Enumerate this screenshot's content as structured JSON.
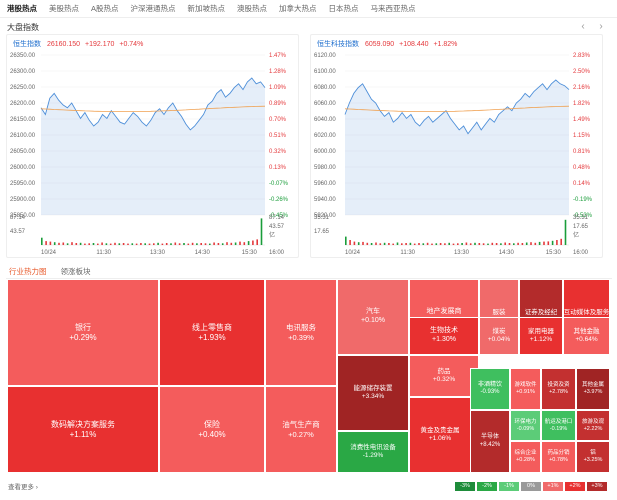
{
  "nav_tabs": [
    "港股热点",
    "美股热点",
    "A股热点",
    "沪深港通热点",
    "新加坡热点",
    "澳股热点",
    "加拿大热点",
    "日本热点",
    "马来西亚热点"
  ],
  "section_title": "大盘指数",
  "arrows": {
    "prev": "‹",
    "next": "›"
  },
  "charts": [
    {
      "name": "恒生指数",
      "price": "26160.150",
      "change": "+192.170",
      "pct": "+0.74%",
      "y_left": [
        "26350.00",
        "26300.00",
        "26250.00",
        "26200.00",
        "26150.00",
        "26100.00",
        "26050.00",
        "26000.00",
        "25950.00",
        "25900.00",
        "25850.00"
      ],
      "y_right": [
        "1.47%",
        "1.28%",
        "1.09%",
        "0.89%",
        "0.70%",
        "0.51%",
        "0.32%",
        "0.13%",
        "-0.07%",
        "-0.26%",
        "-0.45%"
      ],
      "vol_left": [
        "87.14",
        "43.57"
      ],
      "vol_right": [
        "87.14",
        "43.57",
        "亿"
      ],
      "x_ticks": [
        "10/24",
        "11:30",
        "13:30",
        "14:30",
        "15:30",
        "16:00"
      ]
    },
    {
      "name": "恒生科技指数",
      "price": "6059.090",
      "change": "+108.440",
      "pct": "+1.82%",
      "y_left": [
        "6120.00",
        "6100.00",
        "6080.00",
        "6060.00",
        "6040.00",
        "6020.00",
        "6000.00",
        "5980.00",
        "5960.00",
        "5940.00",
        "5920.00"
      ],
      "y_right": [
        "2.83%",
        "2.50%",
        "2.16%",
        "1.82%",
        "1.49%",
        "1.15%",
        "0.81%",
        "0.48%",
        "0.14%",
        "-0.19%",
        "-0.53%"
      ],
      "vol_left": [
        "35.31",
        "17.65"
      ],
      "vol_right": [
        "35.31",
        "17.65",
        "亿"
      ],
      "x_ticks": [
        "10/24",
        "11:30",
        "13:30",
        "14:30",
        "15:30",
        "16:00"
      ]
    }
  ],
  "industry_tabs": [
    "行业热力图",
    "领涨板块"
  ],
  "sectors": [
    {
      "name": "银行",
      "value": "+0.29%",
      "color": "#f45c5c"
    },
    {
      "name": "线上零售商",
      "value": "+1.93%",
      "color": "#e83030"
    },
    {
      "name": "电讯服务",
      "value": "+0.39%",
      "color": "#f45c5c"
    },
    {
      "name": "汽车",
      "value": "+0.10%",
      "color": "#f06a6a"
    },
    {
      "name": "地产发展商",
      "value": "+0.39%",
      "color": "#f45c5c"
    },
    {
      "name": "服装",
      "value": "+0.19%",
      "color": "#f06a6a"
    },
    {
      "name": "证券及经纪",
      "value": "+2.49%",
      "color": "#b32b2b"
    },
    {
      "name": "互动媒体及服务",
      "value": "+1.77%",
      "color": "#e83030"
    },
    {
      "name": "生物技术",
      "value": "+1.30%",
      "color": "#e83030"
    },
    {
      "name": "煤炭",
      "value": "+0.04%",
      "color": "#f06a6a"
    },
    {
      "name": "家用电器",
      "value": "+1.12%",
      "color": "#e83030"
    },
    {
      "name": "其他金融",
      "value": "+0.64%",
      "color": "#f45c5c"
    },
    {
      "name": "数码解决方案服务",
      "value": "+1.11%",
      "color": "#e83030"
    },
    {
      "name": "保险",
      "value": "+0.40%",
      "color": "#f45c5c"
    },
    {
      "name": "油气生产商",
      "value": "+0.27%",
      "color": "#f45c5c"
    },
    {
      "name": "能源储存装置",
      "value": "+3.34%",
      "color": "#a02424"
    },
    {
      "name": "药品",
      "value": "+0.32%",
      "color": "#f45c5c"
    },
    {
      "name": "非酒精饮",
      "value": "-0.93%",
      "color": "#3fbf5f"
    },
    {
      "name": "消费性电讯设备",
      "value": "-1.29%",
      "color": "#2aa845"
    },
    {
      "name": "黄金及贵金属",
      "value": "+1.06%",
      "color": "#e83030"
    },
    {
      "name": "半导体",
      "value": "+8.42%",
      "color": "#b32b2b"
    },
    {
      "name": "游戏软件",
      "value": "+0.91%",
      "color": "#f45c5c"
    },
    {
      "name": "投资及资",
      "value": "+2.78%",
      "color": "#c33030"
    },
    {
      "name": "其他金属",
      "value": "+3.97%",
      "color": "#a02424"
    },
    {
      "name": "环保电力",
      "value": "-0.09%",
      "color": "#5ccc78"
    },
    {
      "name": "航运及港口",
      "value": "-0.19%",
      "color": "#3fbf5f"
    },
    {
      "name": "旅游及观",
      "value": "+2.22%",
      "color": "#c33030"
    },
    {
      "name": "综合企业",
      "value": "+0.28%",
      "color": "#f45c5c"
    },
    {
      "name": "药品分销",
      "value": "+0.78%",
      "color": "#f45c5c"
    },
    {
      "name": "铝",
      "value": "+3.25%",
      "color": "#c33030"
    }
  ],
  "more_label": "查看更多 ›",
  "legend": [
    {
      "label": "-3%",
      "color": "#1e8c3a"
    },
    {
      "label": "-2%",
      "color": "#2aa845"
    },
    {
      "label": "-1%",
      "color": "#5ccc78"
    },
    {
      "label": "0%",
      "color": "#9a9a9a"
    },
    {
      "label": "+1%",
      "color": "#f06a6a"
    },
    {
      "label": "+2%",
      "color": "#e83030"
    },
    {
      "label": "+3%",
      "color": "#b32b2b"
    }
  ],
  "colors": {
    "up": "#e4393c",
    "down": "#1a9d3a",
    "line": "#4e8fd9",
    "avg": "#f0a050"
  }
}
